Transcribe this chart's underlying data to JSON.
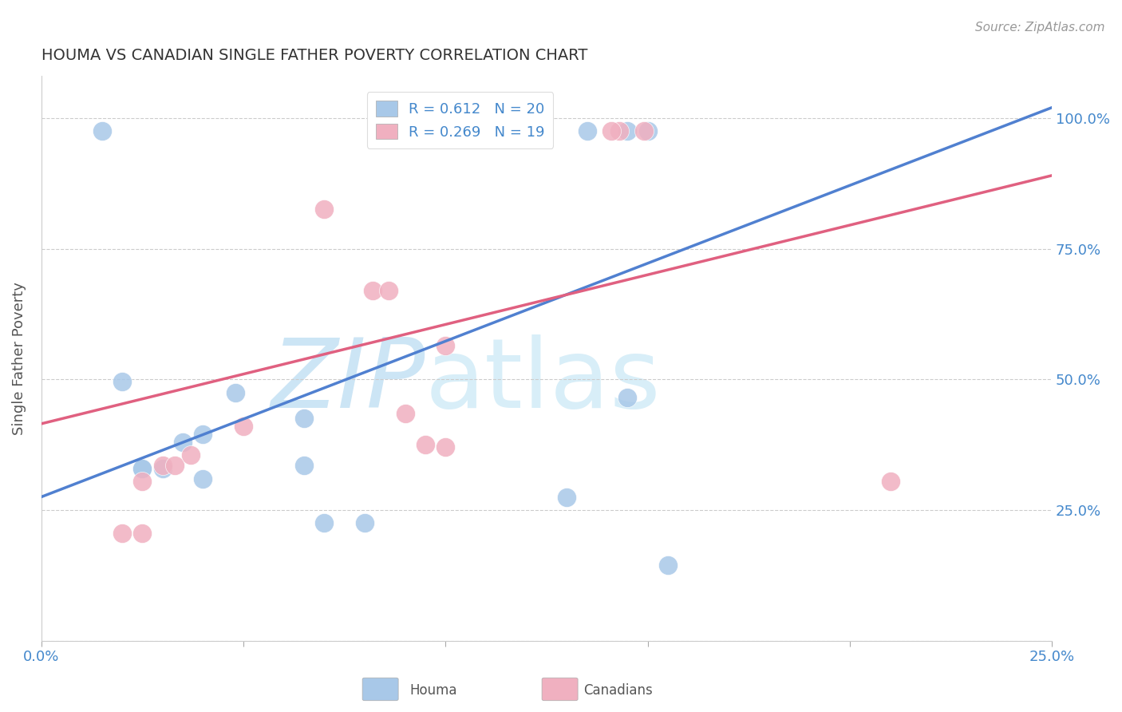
{
  "title": "HOUMA VS CANADIAN SINGLE FATHER POVERTY CORRELATION CHART",
  "source": "Source: ZipAtlas.com",
  "ylabel": "Single Father Poverty",
  "xlim": [
    0.0,
    0.25
  ],
  "ylim": [
    0.0,
    1.08
  ],
  "houma_R": 0.612,
  "houma_N": 20,
  "canadian_R": 0.269,
  "canadian_N": 19,
  "blue_color": "#a8c8e8",
  "pink_color": "#f0b0c0",
  "blue_line_color": "#5080d0",
  "pink_line_color": "#e06080",
  "watermark": "ZIPatlas",
  "watermark_color": "#cce5f5",
  "legend_label1": "Houma",
  "legend_label2": "Canadians",
  "blue_line_x0": 0.0,
  "blue_line_y0": 0.275,
  "blue_line_x1": 0.25,
  "blue_line_y1": 1.02,
  "pink_line_x0": 0.0,
  "pink_line_y0": 0.415,
  "pink_line_x1": 0.25,
  "pink_line_y1": 0.89,
  "houma_x": [
    0.015,
    0.095,
    0.135,
    0.145,
    0.15,
    0.02,
    0.025,
    0.025,
    0.03,
    0.035,
    0.04,
    0.04,
    0.048,
    0.065,
    0.065,
    0.07,
    0.08,
    0.13,
    0.155,
    0.145
  ],
  "houma_y": [
    0.975,
    0.975,
    0.975,
    0.975,
    0.975,
    0.495,
    0.33,
    0.33,
    0.33,
    0.38,
    0.31,
    0.395,
    0.475,
    0.425,
    0.335,
    0.225,
    0.225,
    0.275,
    0.145,
    0.465
  ],
  "canadian_x": [
    0.092,
    0.143,
    0.141,
    0.149,
    0.07,
    0.082,
    0.086,
    0.09,
    0.095,
    0.02,
    0.025,
    0.03,
    0.033,
    0.037,
    0.05,
    0.1,
    0.025,
    0.21,
    0.1
  ],
  "canadian_y": [
    0.975,
    0.975,
    0.975,
    0.975,
    0.825,
    0.67,
    0.67,
    0.435,
    0.375,
    0.205,
    0.305,
    0.335,
    0.335,
    0.355,
    0.41,
    0.565,
    0.205,
    0.305,
    0.37
  ]
}
